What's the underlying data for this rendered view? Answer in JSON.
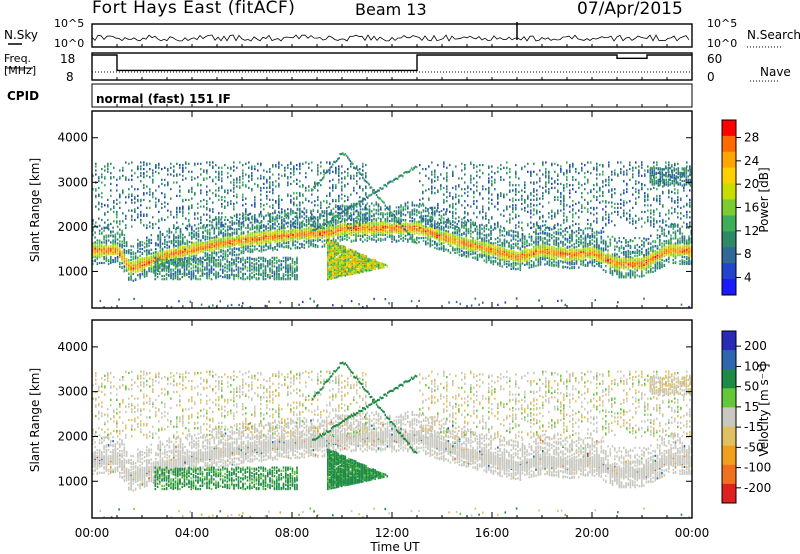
{
  "header": {
    "station": "Fort Hays East (fitACF)",
    "beam": "Beam 13",
    "date": "07/Apr/2015"
  },
  "strip": {
    "nsky_label": "N.Sky",
    "nsky_ticks": [
      "10^5",
      "10^0"
    ],
    "nsearch_label": "N.Search",
    "nsearch_ticks": [
      "10^5",
      "10^0"
    ],
    "freq_label_1": "Freq.",
    "freq_label_2": "[MHz]",
    "freq_ticks": [
      "18",
      "8"
    ],
    "nave_label": "Nave",
    "nave_ticks": [
      "60",
      "0"
    ],
    "cpid_label": "CPID",
    "cpid_value": "normal (fast) 151 IF"
  },
  "axes": {
    "y_label": "Slant Range [km]",
    "y_ticks": [
      "4000",
      "3000",
      "2000",
      "1000"
    ],
    "x_label": "Time UT",
    "x_ticks": [
      "00:00",
      "04:00",
      "08:00",
      "12:00",
      "16:00",
      "20:00",
      "00:00"
    ]
  },
  "power_scale": {
    "label": "Power [dB]",
    "ticks": [
      "28",
      "24",
      "20",
      "16",
      "12",
      "8",
      "4"
    ],
    "colors": [
      "#ff0000",
      "#ff6a00",
      "#ffa500",
      "#ffd000",
      "#c8dc00",
      "#7acc30",
      "#3cae5a",
      "#2e8a66",
      "#2f6a96",
      "#2244cc",
      "#1a1aff"
    ]
  },
  "velocity_scale": {
    "label": "Velocity [m s⁻¹]",
    "ticks": [
      "200",
      "100",
      "50",
      "15",
      "-15",
      "-50",
      "-100",
      "-200"
    ],
    "colors": [
      "#2a2ab8",
      "#2e66b0",
      "#1e8a46",
      "#62c838",
      "#c8c8c0",
      "#e0c060",
      "#f0a020",
      "#f07020",
      "#e02020"
    ]
  },
  "chart_data": [
    {
      "type": "heatmap",
      "panel": "Power",
      "xlabel": "Time UT",
      "ylabel": "Slant Range [km]",
      "xlim": [
        0,
        24
      ],
      "ylim": [
        180,
        4600
      ],
      "colorbar": "Power [dB]",
      "colorbar_range": [
        0,
        30
      ],
      "main_band_range_km": {
        "x": [
          0,
          1,
          1.5,
          3,
          5,
          7,
          8,
          9.5,
          10,
          13,
          14,
          16,
          17,
          18,
          19,
          20,
          21,
          22,
          23,
          24
        ],
        "y": [
          1500,
          1500,
          1100,
          1400,
          1650,
          1800,
          1850,
          1900,
          2000,
          2000,
          1800,
          1500,
          1350,
          1500,
          1400,
          1450,
          1200,
          1200,
          1500,
          1500
        ]
      }
    },
    {
      "type": "heatmap",
      "panel": "Velocity",
      "xlabel": "Time UT",
      "ylabel": "Slant Range [km]",
      "xlim": [
        0,
        24
      ],
      "ylim": [
        180,
        4600
      ],
      "colorbar": "Velocity [m s⁻¹]",
      "colorbar_range": [
        -200,
        200
      ]
    },
    {
      "type": "line",
      "panel": "Freq.",
      "ylabel": "[MHz]",
      "ylim": [
        8,
        18
      ],
      "x": [
        0,
        1,
        1,
        13,
        13,
        21,
        21,
        22.2,
        22.2,
        24
      ],
      "y": [
        18,
        18,
        11,
        11,
        18,
        18,
        16.5,
        16.5,
        18,
        18
      ]
    }
  ]
}
